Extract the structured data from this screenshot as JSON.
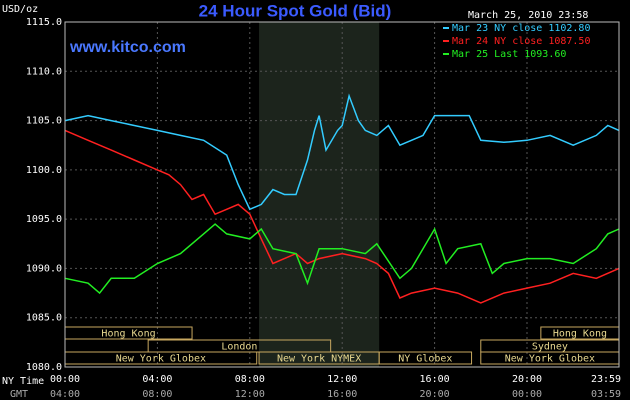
{
  "chart_data": {
    "type": "line",
    "title": "24 Hour Spot Gold (Bid)",
    "subtitle": "www.kitco.com",
    "timestamp": "March 25, 2010 23:58",
    "y_label": "USD/oz",
    "x_label": "NY Time",
    "x2_label": "GMT",
    "xlim": [
      0,
      23.983
    ],
    "ylim": [
      1080,
      1115
    ],
    "grid": true,
    "yticks": [
      {
        "value": 1080,
        "label": "1080.0"
      },
      {
        "value": 1085,
        "label": "1085.0"
      },
      {
        "value": 1090,
        "label": "1090.0"
      },
      {
        "value": 1095,
        "label": "1095.0"
      },
      {
        "value": 1100,
        "label": "1100.0"
      },
      {
        "value": 1105,
        "label": "1105.0"
      },
      {
        "value": 1110,
        "label": "1110.0"
      },
      {
        "value": 1115,
        "label": "1115.0"
      }
    ],
    "xticks": [
      {
        "value": 0,
        "label": "00:00"
      },
      {
        "value": 4,
        "label": "04:00"
      },
      {
        "value": 8,
        "label": "08:00"
      },
      {
        "value": 12,
        "label": "12:00"
      },
      {
        "value": 16,
        "label": "16:00"
      },
      {
        "value": 20,
        "label": "20:00"
      },
      {
        "value": 23.983,
        "label": "23:59"
      }
    ],
    "x2ticks": [
      {
        "value": 0,
        "label": "04:00"
      },
      {
        "value": 4,
        "label": "08:00"
      },
      {
        "value": 8,
        "label": "12:00"
      },
      {
        "value": 12,
        "label": "16:00"
      },
      {
        "value": 16,
        "label": "20:00"
      },
      {
        "value": 20,
        "label": "00:00"
      },
      {
        "value": 23.983,
        "label": "03:59"
      }
    ],
    "highlight": [
      8.4,
      13.6
    ],
    "sessions": [
      {
        "label": "Hong Kong",
        "row": 0,
        "start": 0,
        "end": 5.5
      },
      {
        "label": "Hong Kong",
        "row": 0,
        "start": 20.6,
        "end": 23.983
      },
      {
        "label": "London",
        "row": 1,
        "start": 3.6,
        "end": 11.5
      },
      {
        "label": "Sydney",
        "row": 1,
        "start": 18,
        "end": 23.983
      },
      {
        "label": "New York Globex",
        "row": 2,
        "start": 0,
        "end": 8.3
      },
      {
        "label": "New York NYMEX",
        "row": 2,
        "start": 8.4,
        "end": 13.6
      },
      {
        "label": "NY Globex",
        "row": 2,
        "start": 13.6,
        "end": 17.6
      },
      {
        "label": "New York Globex",
        "row": 2,
        "start": 18,
        "end": 23.983
      }
    ],
    "series": [
      {
        "name": "Mar 23 NY close 1102.80",
        "color": "#33ccff",
        "x": [
          0,
          1,
          2,
          3,
          4,
          5,
          6,
          7,
          7.5,
          8,
          8.5,
          9,
          9.5,
          10,
          10.5,
          10.8,
          11,
          11.3,
          11.8,
          12,
          12.2,
          12.3,
          12.7,
          13,
          13.5,
          14,
          14.5,
          15,
          15.5,
          16,
          17,
          17.5,
          18,
          19,
          20,
          21,
          22,
          23,
          23.5,
          23.983
        ],
        "values": [
          1105,
          1105.5,
          1105,
          1104.5,
          1104,
          1103.5,
          1103,
          1101.5,
          1098.5,
          1096,
          1096.5,
          1098,
          1097.5,
          1097.5,
          1101,
          1104,
          1105.5,
          1102,
          1104,
          1104.5,
          1106.5,
          1107.5,
          1105,
          1104,
          1103.5,
          1104.5,
          1102.5,
          1103,
          1103.5,
          1105.5,
          1105.5,
          1105.5,
          1103,
          1102.8,
          1103,
          1103.5,
          1102.5,
          1103.5,
          1104.5,
          1104
        ]
      },
      {
        "name": "Mar 24 NY close 1087.50",
        "color": "#ff2020",
        "x": [
          0,
          1,
          2,
          3,
          4,
          4.5,
          5,
          5.5,
          6,
          6.5,
          7,
          7.5,
          8,
          8.5,
          9,
          9.5,
          10,
          10.5,
          11,
          12,
          13,
          13.5,
          14,
          14.5,
          15,
          16,
          17,
          18,
          19,
          20,
          21,
          22,
          23,
          23.983
        ],
        "values": [
          1104,
          1103,
          1102,
          1101,
          1100,
          1099.5,
          1098.5,
          1097,
          1097.5,
          1095.5,
          1096,
          1096.5,
          1095.5,
          1093,
          1090.5,
          1091,
          1091.5,
          1090.5,
          1091,
          1091.5,
          1091,
          1090.5,
          1089.5,
          1087,
          1087.5,
          1088,
          1087.5,
          1086.5,
          1087.5,
          1088,
          1088.5,
          1089.5,
          1089,
          1090
        ]
      },
      {
        "name": "Mar 25 Last 1093.60",
        "color": "#22ee22",
        "x": [
          0,
          1,
          1.5,
          2,
          3,
          4,
          5,
          6,
          6.5,
          7,
          8,
          8.5,
          9,
          10,
          10.5,
          11,
          12,
          13,
          13.5,
          14.5,
          15,
          16,
          16.5,
          17,
          18,
          18.5,
          19,
          20,
          21,
          22,
          23,
          23.5,
          23.983
        ],
        "values": [
          1089,
          1088.5,
          1087.5,
          1089,
          1089,
          1090.5,
          1091.5,
          1093.5,
          1094.5,
          1093.5,
          1093,
          1094,
          1092,
          1091.5,
          1088.5,
          1092,
          1092,
          1091.5,
          1092.5,
          1089,
          1090,
          1094,
          1090.5,
          1092,
          1092.5,
          1089.5,
          1090.5,
          1091,
          1091,
          1090.5,
          1092,
          1093.5,
          1094
        ]
      }
    ]
  }
}
